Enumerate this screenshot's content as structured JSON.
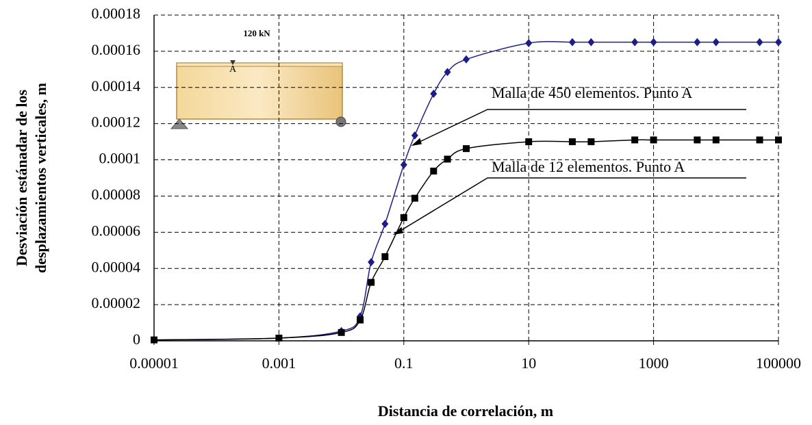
{
  "chart_data": {
    "type": "line",
    "ylabel": [
      "Desviación estánadar de los",
      "desplazamientos verticales, m"
    ],
    "xlabel": "Distancia de correlación, m",
    "xscale": "log",
    "grid": true,
    "x": [
      1e-05,
      0.001,
      0.01,
      0.02,
      0.03,
      0.05,
      0.1,
      0.15,
      0.3,
      0.5,
      1,
      10,
      50,
      100,
      500,
      1000,
      5000,
      10000,
      50000,
      100000
    ],
    "series": [
      {
        "name": "Malla de 450 elementos. Punto A",
        "color": "#1c1c8a",
        "marker": "diamond",
        "values": [
          5e-07,
          1.5e-06,
          5.4e-06,
          1.35e-05,
          4.35e-05,
          6.46e-05,
          9.73e-05,
          0.0001135,
          0.0001365,
          0.0001485,
          0.0001555,
          0.0001645,
          0.000165,
          0.000165,
          0.000165,
          0.000165,
          0.000165,
          0.000165,
          0.000165,
          0.000165
        ]
      },
      {
        "name": "Malla de 12 elementos. Punto A",
        "color": "#000000",
        "marker": "square",
        "values": [
          5e-07,
          1.5e-06,
          4.6e-06,
          1.15e-05,
          3.23e-05,
          4.65e-05,
          6.81e-05,
          7.88e-05,
          9.38e-05,
          0.0001004,
          0.0001062,
          0.00011,
          0.00011,
          0.00011,
          0.000111,
          0.000111,
          0.000111,
          0.000111,
          0.000111,
          0.000111
        ]
      }
    ],
    "xlim": [
      1e-05,
      100000
    ],
    "xticks": [
      1e-05,
      0.001,
      0.1,
      10,
      1000,
      100000
    ],
    "ylim": [
      0,
      0.00018
    ],
    "yticks": [
      0,
      2e-05,
      4e-05,
      6e-05,
      8e-05,
      0.0001,
      0.00012,
      0.00014,
      0.00016,
      0.00018
    ],
    "inset_labels": [
      "120 kN",
      "A"
    ]
  }
}
